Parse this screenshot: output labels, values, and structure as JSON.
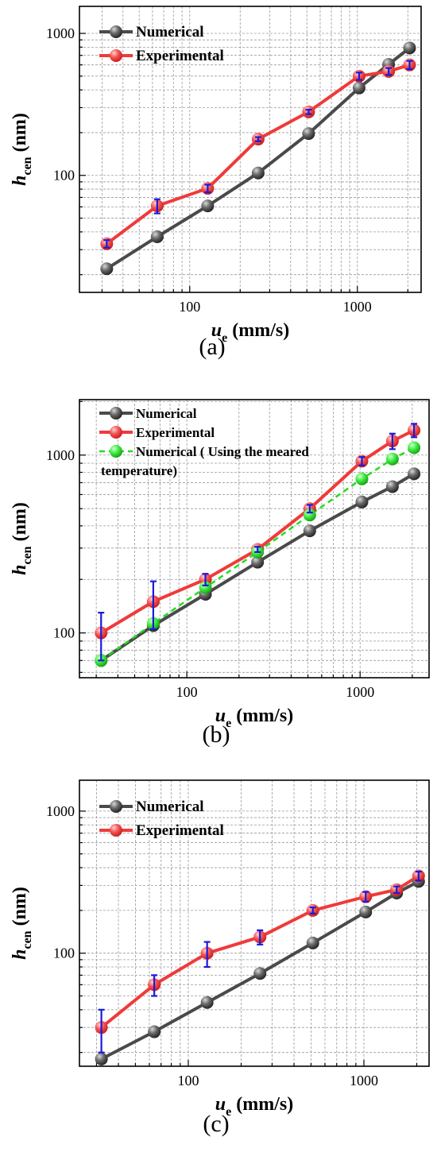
{
  "colors": {
    "numerical": "#4a4a4a",
    "experimental": "#f03a3a",
    "measured_temp": "#22dd22",
    "error_bar": "#1a1adc",
    "grid": "#9a9a9a",
    "axis": "#000000"
  },
  "chart_data": [
    {
      "type": "line",
      "panel_label": "(a)",
      "xscale": "log",
      "yscale": "log",
      "xlim": [
        22,
        2400
      ],
      "ylim": [
        15,
        1550
      ],
      "xticks": [
        {
          "value": 100,
          "label": "100"
        },
        {
          "value": 1000,
          "label": "1000"
        }
      ],
      "yticks": [
        {
          "value": 100,
          "label": "100"
        },
        {
          "value": 1000,
          "label": "1000"
        }
      ],
      "xlabel": {
        "main": "u",
        "sub": "e",
        "rest": " (mm/s)"
      },
      "ylabel": {
        "main": "h",
        "sub": "cen",
        "rest": " (nm)"
      },
      "grid": true,
      "legend_position": "top-left",
      "series": [
        {
          "name": "Numerical",
          "style": "numerical",
          "x": [
            32,
            64,
            128,
            256,
            512,
            1024,
            1536,
            2048
          ],
          "y": [
            22,
            37,
            61,
            104,
            197,
            413,
            605,
            790
          ]
        },
        {
          "name": "Experimental",
          "style": "experimental",
          "x": [
            32,
            64,
            128,
            256,
            512,
            1024,
            1536,
            2048
          ],
          "y": [
            33,
            61,
            81,
            180,
            280,
            500,
            540,
            600
          ],
          "err": [
            2,
            7,
            5,
            6,
            10,
            30,
            30,
            40
          ]
        }
      ]
    },
    {
      "type": "line",
      "panel_label": "(b)",
      "xscale": "log",
      "yscale": "log",
      "xlim": [
        24,
        2500
      ],
      "ylim": [
        56,
        2050
      ],
      "xticks": [
        {
          "value": 100,
          "label": "100"
        },
        {
          "value": 1000,
          "label": "1000"
        }
      ],
      "yticks": [
        {
          "value": 100,
          "label": "100"
        },
        {
          "value": 1000,
          "label": "1000"
        }
      ],
      "xlabel": {
        "main": "u",
        "sub": "e",
        "rest": " (mm/s)"
      },
      "ylabel": {
        "main": "h",
        "sub": "cen",
        "rest": " (nm)"
      },
      "grid": true,
      "legend_position": "top-left",
      "series": [
        {
          "name": "Numerical",
          "style": "numerical",
          "x": [
            32,
            64,
            128,
            256,
            512,
            1024,
            1536,
            2048
          ],
          "y": [
            70,
            110,
            165,
            250,
            375,
            545,
            665,
            785
          ]
        },
        {
          "name": "Experimental",
          "style": "experimental",
          "x": [
            32,
            64,
            128,
            256,
            512,
            1024,
            1536,
            2048
          ],
          "y": [
            100,
            150,
            200,
            295,
            500,
            925,
            1200,
            1380
          ],
          "err": [
            30,
            45,
            15,
            10,
            25,
            50,
            120,
            120
          ]
        },
        {
          "name": "Numerical ( Using the meared temperature)",
          "legend_lines": [
            "Numerical ( Using the meared",
            "temperature)"
          ],
          "style": "measured_temp",
          "x": [
            32,
            64,
            128,
            256,
            512,
            1024,
            1536,
            2048
          ],
          "y": [
            70,
            113,
            180,
            285,
            460,
            735,
            950,
            1100
          ]
        }
      ]
    },
    {
      "type": "line",
      "panel_label": "(c)",
      "xscale": "log",
      "yscale": "log",
      "xlim": [
        24,
        2350
      ],
      "ylim": [
        16,
        1650
      ],
      "xticks": [
        {
          "value": 100,
          "label": "100"
        },
        {
          "value": 1000,
          "label": "1000"
        }
      ],
      "yticks": [
        {
          "value": 100,
          "label": "100"
        },
        {
          "value": 1000,
          "label": "1000"
        }
      ],
      "xlabel": {
        "main": "u",
        "sub": "e",
        "rest": " (mm/s)"
      },
      "ylabel": {
        "main": "h",
        "sub": "cen",
        "rest": " (nm)"
      },
      "grid": true,
      "legend_position": "top-left",
      "series": [
        {
          "name": "Numerical",
          "style": "numerical",
          "x": [
            32,
            64,
            128,
            256,
            512,
            1024,
            1536,
            2048
          ],
          "y": [
            18,
            28,
            45,
            72,
            118,
            195,
            265,
            320
          ]
        },
        {
          "name": "Experimental",
          "style": "experimental",
          "x": [
            32,
            64,
            128,
            256,
            512,
            1024,
            1536,
            2048
          ],
          "y": [
            30,
            60,
            100,
            130,
            200,
            250,
            280,
            350
          ],
          "err": [
            10,
            10,
            20,
            15,
            10,
            20,
            15,
            25
          ]
        }
      ]
    }
  ]
}
